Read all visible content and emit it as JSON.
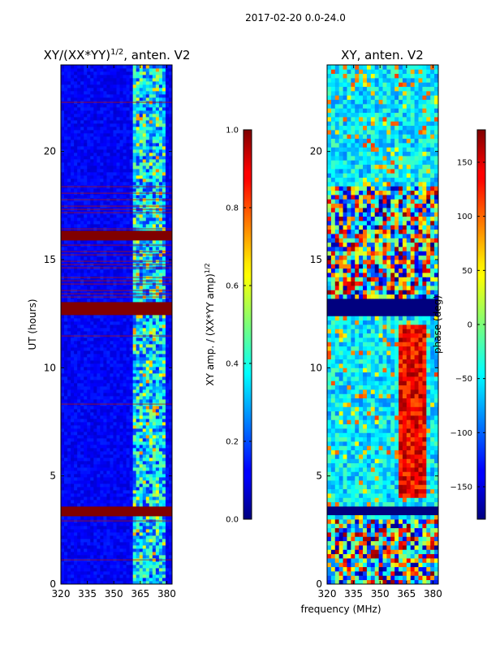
{
  "suptitle": "2017-02-20 0.0-24.0",
  "chart_data": [
    {
      "type": "heatmap",
      "title_main": "XY/(XX*YY)",
      "title_sup": "1/2",
      "title_tail": ", anten. V2",
      "xlabel": "",
      "ylabel": "UT (hours)",
      "xlim": [
        320,
        383
      ],
      "ylim": [
        0,
        24
      ],
      "xticks": [
        "320",
        "335",
        "350",
        "365",
        "380"
      ],
      "xtick_values": [
        320,
        335,
        350,
        365,
        380
      ],
      "yticks": [
        "0",
        "5",
        "10",
        "15",
        "20"
      ],
      "ytick_values": [
        0,
        5,
        10,
        15,
        20
      ],
      "colormap": "jet",
      "colorbar": {
        "label_main": "XY amp. / (XX*YY amp)",
        "label_sup": "1/2",
        "range": [
          0.0,
          1.0
        ],
        "ticks": [
          "0.0",
          "0.2",
          "0.4",
          "0.6",
          "0.8",
          "1.0"
        ],
        "tick_values": [
          0.0,
          0.2,
          0.4,
          0.6,
          0.8,
          1.0
        ]
      },
      "flagged_hours": [
        [
          3.2,
          3.6
        ],
        [
          12.5,
          13.1
        ],
        [
          15.9,
          16.3
        ]
      ],
      "active_band_mhz": [
        361,
        380
      ]
    },
    {
      "type": "heatmap",
      "title": "XY, anten. V2",
      "xlabel": "frequency (MHz)",
      "ylabel": "",
      "xlim": [
        320,
        383
      ],
      "ylim": [
        0,
        24
      ],
      "xticks": [
        "320",
        "335",
        "350",
        "365",
        "380"
      ],
      "xtick_values": [
        320,
        335,
        350,
        365,
        380
      ],
      "yticks": [
        "0",
        "5",
        "10",
        "15",
        "20"
      ],
      "ytick_values": [
        0,
        5,
        10,
        15,
        20
      ],
      "colormap": "jet",
      "colorbar": {
        "label": "phase (deg)",
        "range": [
          -180,
          180
        ],
        "ticks": [
          "−150",
          "−100",
          "−50",
          "0",
          "50",
          "100",
          "150"
        ],
        "tick_values": [
          -150,
          -100,
          -50,
          0,
          50,
          100,
          150
        ]
      },
      "flagged_hours": [
        [
          3.2,
          3.6
        ],
        [
          12.5,
          13.1
        ]
      ]
    }
  ]
}
